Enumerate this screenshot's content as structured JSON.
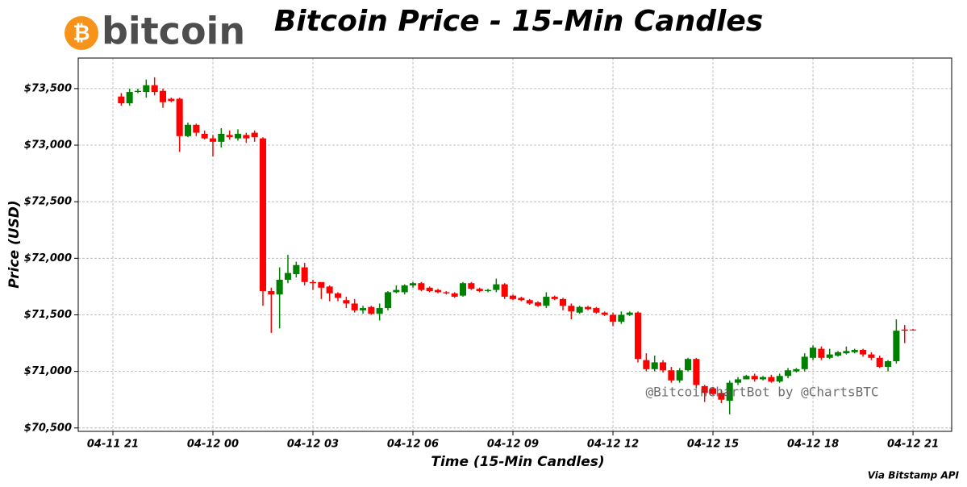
{
  "chart_data": {
    "type": "candlestick",
    "logo": "bitcoin",
    "logo_symbol": "₿",
    "title": "Bitcoin Price - 15-Min Candles",
    "ylabel": "Price (USD)",
    "xlabel": "Time (15-Min Candles)",
    "watermark": "@BitcoinChartBot by @ChartsBTC",
    "source": "Via Bitstamp API",
    "up_color": "#008000",
    "down_color": "#ff0000",
    "grid": true,
    "xlim": [
      -1.04,
      25.16
    ],
    "ylim": [
      70470,
      73770
    ],
    "xticks": [
      {
        "value": 0,
        "label": "04-11 21"
      },
      {
        "value": 3,
        "label": "04-12 00"
      },
      {
        "value": 6,
        "label": "04-12 03"
      },
      {
        "value": 9,
        "label": "04-12 06"
      },
      {
        "value": 12,
        "label": "04-12 09"
      },
      {
        "value": 15,
        "label": "04-12 12"
      },
      {
        "value": 18,
        "label": "04-12 15"
      },
      {
        "value": 21,
        "label": "04-12 18"
      },
      {
        "value": 24,
        "label": "04-12 21"
      }
    ],
    "yticks": [
      {
        "value": 70500,
        "label": "$70,500"
      },
      {
        "value": 71000,
        "label": "$71,000"
      },
      {
        "value": 71500,
        "label": "$71,500"
      },
      {
        "value": 72000,
        "label": "$72,000"
      },
      {
        "value": 72500,
        "label": "$72,500"
      },
      {
        "value": 73000,
        "label": "$73,000"
      },
      {
        "value": 73500,
        "label": "$73,500"
      }
    ],
    "x": [
      0.25,
      0.5,
      0.75,
      1,
      1.25,
      1.5,
      1.75,
      2,
      2.25,
      2.5,
      2.75,
      3,
      3.25,
      3.5,
      3.75,
      4,
      4.25,
      4.5,
      4.75,
      5,
      5.25,
      5.5,
      5.75,
      6,
      6.25,
      6.5,
      6.75,
      7,
      7.25,
      7.5,
      7.75,
      8,
      8.25,
      8.5,
      8.75,
      9,
      9.25,
      9.5,
      9.75,
      10,
      10.25,
      10.5,
      10.75,
      11,
      11.25,
      11.5,
      11.75,
      12,
      12.25,
      12.5,
      12.75,
      13,
      13.25,
      13.5,
      13.75,
      14,
      14.25,
      14.5,
      14.75,
      15,
      15.25,
      15.5,
      15.75,
      16,
      16.25,
      16.5,
      16.75,
      17,
      17.25,
      17.5,
      17.75,
      18,
      18.25,
      18.5,
      18.75,
      19,
      19.25,
      19.5,
      19.75,
      20,
      20.25,
      20.5,
      20.75,
      21,
      21.25,
      21.5,
      21.75,
      22,
      22.25,
      22.5,
      22.75,
      23,
      23.25,
      23.5,
      23.75,
      24
    ],
    "open": [
      73430,
      73370,
      73470,
      73470,
      73530,
      73480,
      73410,
      73410,
      73080,
      73180,
      73100,
      73060,
      73030,
      73090,
      73060,
      73090,
      73110,
      73060,
      71710,
      71680,
      71810,
      71860,
      71920,
      71790,
      71790,
      71750,
      71690,
      71630,
      71600,
      71540,
      71570,
      71510,
      71560,
      71700,
      71700,
      71760,
      71780,
      71740,
      71720,
      71700,
      71690,
      71670,
      71780,
      71730,
      71710,
      71720,
      71770,
      71670,
      71650,
      71630,
      71610,
      71580,
      71660,
      71640,
      71580,
      71520,
      71570,
      71560,
      71520,
      71500,
      71440,
      71500,
      71520,
      71100,
      71020,
      71080,
      71010,
      70920,
      71010,
      71110,
      70870,
      70850,
      70810,
      70740,
      70900,
      70930,
      70960,
      70930,
      70950,
      70910,
      70960,
      71000,
      71020,
      71120,
      71200,
      71120,
      71140,
      71160,
      71170,
      71190,
      71150,
      71120,
      71040,
      71090,
      71370,
      71370
    ],
    "high": [
      73460,
      73500,
      73500,
      73580,
      73600,
      73500,
      73420,
      73420,
      73200,
      73190,
      73130,
      73090,
      73150,
      73130,
      73140,
      73110,
      73130,
      73070,
      71740,
      71920,
      72030,
      71970,
      71960,
      71810,
      71780,
      71760,
      71700,
      71660,
      71640,
      71580,
      71580,
      71600,
      71710,
      71760,
      71770,
      71790,
      71790,
      71750,
      71730,
      71710,
      71700,
      71790,
      71790,
      71740,
      71730,
      71820,
      71780,
      71680,
      71660,
      71640,
      71620,
      71700,
      71670,
      71650,
      71600,
      71580,
      71580,
      71570,
      71530,
      71520,
      71530,
      71530,
      71530,
      71160,
      71140,
      71100,
      71040,
      71030,
      71120,
      71120,
      70880,
      70860,
      70840,
      70920,
      70950,
      70970,
      70980,
      70960,
      70970,
      70980,
      71030,
      71030,
      71160,
      71230,
      71220,
      71200,
      71180,
      71220,
      71200,
      71200,
      71170,
      71140,
      71100,
      71460,
      71410,
      71375
    ],
    "low": [
      73350,
      73350,
      73460,
      73420,
      73440,
      73330,
      73380,
      72940,
      73070,
      73080,
      73050,
      72900,
      72980,
      73050,
      73040,
      73020,
      73030,
      71580,
      71340,
      71380,
      71780,
      71830,
      71760,
      71720,
      71640,
      71620,
      71620,
      71560,
      71520,
      71510,
      71500,
      71450,
      71540,
      71690,
      71680,
      71740,
      71710,
      71700,
      71690,
      71680,
      71650,
      71660,
      71720,
      71700,
      71700,
      71700,
      71640,
      71630,
      71620,
      71590,
      71570,
      71560,
      71630,
      71540,
      71460,
      71510,
      71540,
      71510,
      71490,
      71400,
      71420,
      71490,
      71080,
      71000,
      71000,
      70990,
      70900,
      70900,
      71000,
      70850,
      70730,
      70790,
      70720,
      70620,
      70880,
      70940,
      70910,
      70920,
      70900,
      70900,
      70940,
      70990,
      71000,
      71100,
      71100,
      71110,
      71130,
      71150,
      71160,
      71130,
      71100,
      71030,
      71000,
      71070,
      71250,
      71360
    ],
    "close": [
      73370,
      73470,
      73480,
      73530,
      73470,
      73380,
      73390,
      73080,
      73180,
      73110,
      73060,
      73030,
      73100,
      73070,
      73100,
      73060,
      73070,
      71710,
      71680,
      71810,
      71870,
      71940,
      71790,
      71780,
      71740,
      71690,
      71650,
      71600,
      71540,
      71560,
      71510,
      71560,
      71700,
      71720,
      71760,
      71780,
      71720,
      71710,
      71700,
      71690,
      71660,
      71780,
      71730,
      71710,
      71720,
      71770,
      71660,
      71640,
      71630,
      71600,
      71580,
      71660,
      71640,
      71580,
      71530,
      71570,
      71550,
      71520,
      71500,
      71440,
      71500,
      71520,
      71110,
      71020,
      71080,
      71010,
      70920,
      71010,
      71110,
      70880,
      70810,
      70800,
      70750,
      70900,
      70930,
      70960,
      70930,
      70950,
      70910,
      70960,
      71010,
      71020,
      71130,
      71210,
      71120,
      71150,
      71170,
      71180,
      71190,
      71150,
      71120,
      71040,
      71090,
      71360,
      71360,
      71365
    ]
  }
}
